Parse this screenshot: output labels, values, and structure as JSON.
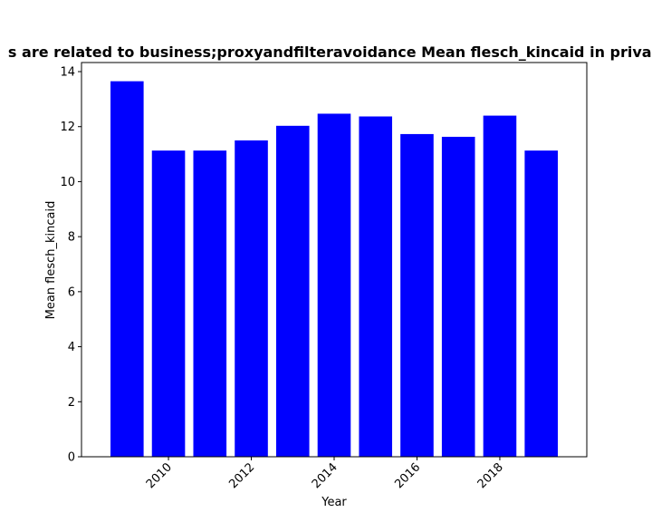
{
  "colors": {
    "bar": "#0000ff",
    "axis": "#000000",
    "background": "#ffffff"
  },
  "chart_data": {
    "type": "bar",
    "title": "s are related to business;proxyandfilteravoidance Mean flesch_kincaid in privac",
    "xlabel": "Year",
    "ylabel": "Mean flesch_kincaid",
    "x": [
      2009,
      2010,
      2011,
      2012,
      2013,
      2014,
      2015,
      2016,
      2017,
      2018,
      2019
    ],
    "values": [
      13.65,
      11.13,
      11.13,
      11.5,
      12.03,
      12.47,
      12.37,
      11.73,
      11.63,
      12.4,
      11.13
    ],
    "xlim": [
      2007.9,
      2020.1
    ],
    "ylim": [
      0,
      14.33
    ],
    "xticks": [
      2010,
      2012,
      2014,
      2016,
      2018
    ],
    "yticks": [
      0,
      2,
      4,
      6,
      8,
      10,
      12,
      14
    ],
    "grid": false,
    "legend": "none"
  }
}
